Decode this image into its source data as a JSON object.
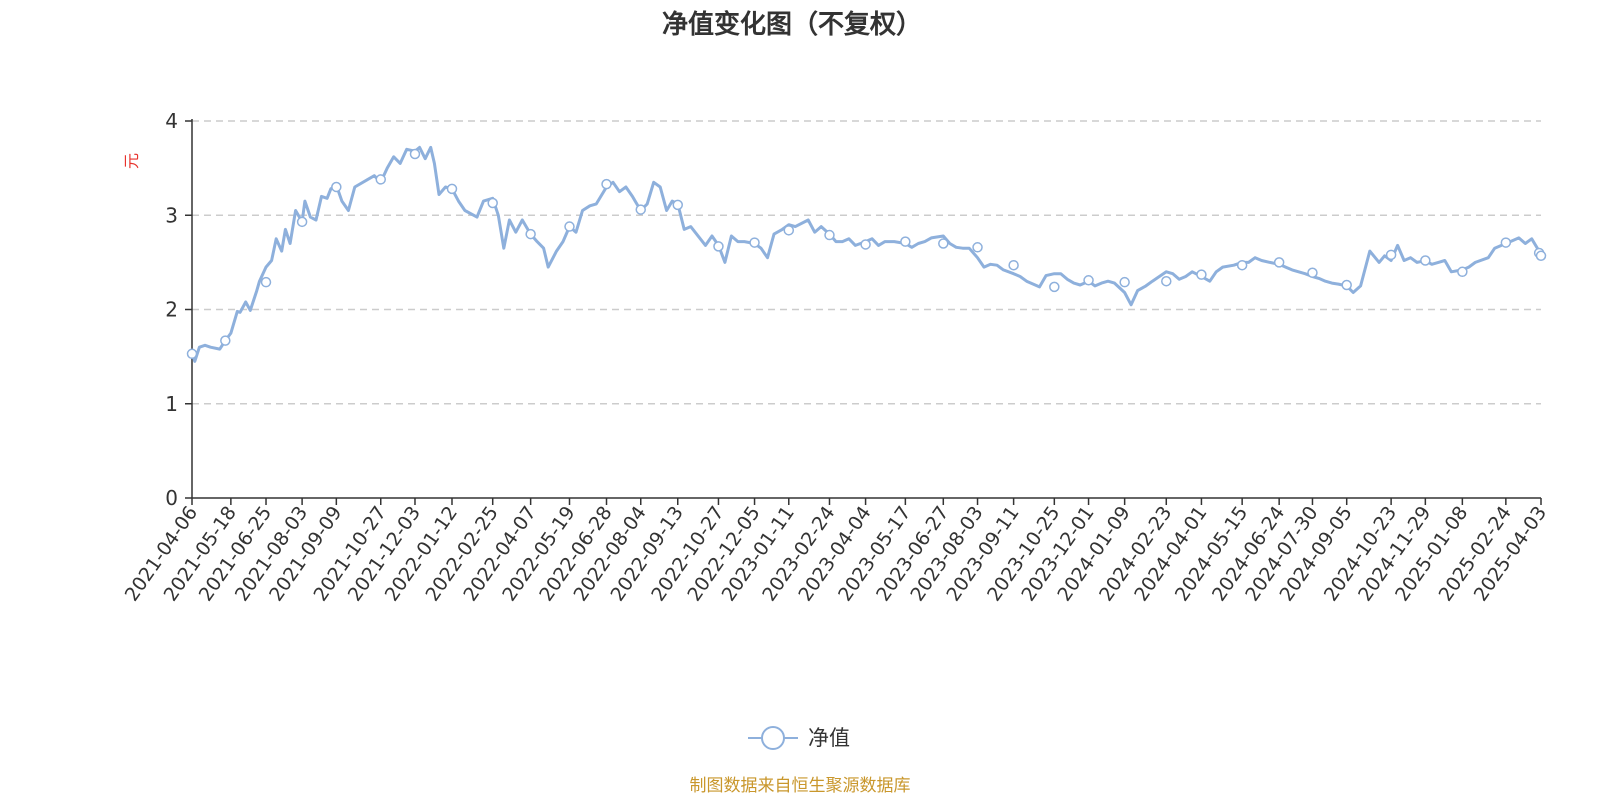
{
  "chart_data": {
    "type": "line",
    "title": "净值变化图（不复权）",
    "ylabel": "元",
    "ylim": [
      0,
      4
    ],
    "yticks": [
      "0",
      "1",
      "2",
      "3",
      "4"
    ],
    "grid": "horizontal dashed",
    "x_tick_labels": [
      "2021-04-06",
      "2021-05-18",
      "2021-06-25",
      "2021-08-03",
      "2021-09-09",
      "2021-10-27",
      "2021-12-03",
      "2022-01-12",
      "2022-02-25",
      "2022-04-07",
      "2022-05-19",
      "2022-06-28",
      "2022-08-04",
      "2022-09-13",
      "2022-10-27",
      "2022-12-05",
      "2023-01-11",
      "2023-02-24",
      "2023-04-04",
      "2023-05-17",
      "2023-06-27",
      "2023-08-03",
      "2023-09-11",
      "2023-10-25",
      "2023-12-01",
      "2024-01-09",
      "2024-02-23",
      "2024-04-01",
      "2024-05-15",
      "2024-06-24",
      "2024-07-30",
      "2024-09-05",
      "2024-10-23",
      "2024-11-29",
      "2025-01-08",
      "2025-02-24",
      "2025-04-03"
    ],
    "series": [
      {
        "name": "净值",
        "color": "#8eb0dc",
        "x": [
          "2021-04-06",
          "2021-04-09",
          "2021-04-14",
          "2021-04-20",
          "2021-04-26",
          "2021-05-06",
          "2021-05-12",
          "2021-05-18",
          "2021-05-25",
          "2021-05-28",
          "2021-06-03",
          "2021-06-08",
          "2021-06-15",
          "2021-06-18",
          "2021-06-25",
          "2021-07-01",
          "2021-07-06",
          "2021-07-12",
          "2021-07-16",
          "2021-07-21",
          "2021-07-27",
          "2021-08-03",
          "2021-08-06",
          "2021-08-12",
          "2021-08-18",
          "2021-08-24",
          "2021-08-30",
          "2021-09-03",
          "2021-09-09",
          "2021-09-15",
          "2021-09-22",
          "2021-09-29",
          "2021-10-13",
          "2021-10-20",
          "2021-10-27",
          "2021-11-03",
          "2021-11-10",
          "2021-11-17",
          "2021-11-24",
          "2021-12-03",
          "2021-12-08",
          "2021-12-14",
          "2021-12-20",
          "2021-12-24",
          "2021-12-29",
          "2022-01-05",
          "2022-01-12",
          "2022-01-19",
          "2022-01-26",
          "2022-02-08",
          "2022-02-15",
          "2022-02-25",
          "2022-03-03",
          "2022-03-09",
          "2022-03-15",
          "2022-03-22",
          "2022-03-29",
          "2022-04-07",
          "2022-04-14",
          "2022-04-21",
          "2022-04-26",
          "2022-05-05",
          "2022-05-12",
          "2022-05-19",
          "2022-05-26",
          "2022-06-02",
          "2022-06-10",
          "2022-06-17",
          "2022-06-28",
          "2022-07-05",
          "2022-07-12",
          "2022-07-19",
          "2022-07-26",
          "2022-08-04",
          "2022-08-11",
          "2022-08-18",
          "2022-08-25",
          "2022-09-01",
          "2022-09-07",
          "2022-09-13",
          "2022-09-20",
          "2022-09-27",
          "2022-10-13",
          "2022-10-20",
          "2022-10-27",
          "2022-11-03",
          "2022-11-10",
          "2022-11-17",
          "2022-11-24",
          "2022-12-05",
          "2022-12-12",
          "2022-12-19",
          "2022-12-26",
          "2023-01-04",
          "2023-01-11",
          "2023-01-18",
          "2023-02-01",
          "2023-02-08",
          "2023-02-15",
          "2023-02-24",
          "2023-03-03",
          "2023-03-10",
          "2023-03-17",
          "2023-03-24",
          "2023-04-04",
          "2023-04-11",
          "2023-04-18",
          "2023-04-25",
          "2023-05-05",
          "2023-05-17",
          "2023-05-24",
          "2023-05-31",
          "2023-06-07",
          "2023-06-14",
          "2023-06-27",
          "2023-07-04",
          "2023-07-11",
          "2023-07-18",
          "2023-07-25",
          "2023-08-03",
          "2023-08-10",
          "2023-08-17",
          "2023-08-24",
          "2023-08-31",
          "2023-09-11",
          "2023-09-18",
          "2023-09-25",
          "2023-10-09",
          "2023-10-16",
          "2023-10-25",
          "2023-11-01",
          "2023-11-08",
          "2023-11-15",
          "2023-11-22",
          "2023-12-01",
          "2023-12-08",
          "2023-12-15",
          "2023-12-22",
          "2023-12-29",
          "2024-01-09",
          "2024-01-16",
          "2024-01-23",
          "2024-02-01",
          "2024-02-08",
          "2024-02-23",
          "2024-03-01",
          "2024-03-08",
          "2024-03-15",
          "2024-03-22",
          "2024-04-01",
          "2024-04-10",
          "2024-04-17",
          "2024-04-24",
          "2024-05-06",
          "2024-05-15",
          "2024-05-22",
          "2024-05-29",
          "2024-06-05",
          "2024-06-14",
          "2024-06-24",
          "2024-07-01",
          "2024-07-08",
          "2024-07-15",
          "2024-07-22",
          "2024-07-30",
          "2024-08-06",
          "2024-08-13",
          "2024-08-20",
          "2024-08-27",
          "2024-09-05",
          "2024-09-12",
          "2024-09-20",
          "2024-09-30",
          "2024-10-10",
          "2024-10-16",
          "2024-10-23",
          "2024-10-30",
          "2024-11-06",
          "2024-11-13",
          "2024-11-20",
          "2024-11-29",
          "2024-12-06",
          "2024-12-13",
          "2024-12-20",
          "2024-12-27",
          "2025-01-08",
          "2025-01-15",
          "2025-01-22",
          "2025-02-05",
          "2025-02-12",
          "2025-02-24",
          "2025-03-03",
          "2025-03-10",
          "2025-03-17",
          "2025-03-24",
          "2025-04-01",
          "2025-04-03"
        ],
        "values": [
          1.53,
          1.45,
          1.6,
          1.62,
          1.6,
          1.58,
          1.67,
          1.75,
          1.98,
          1.97,
          2.08,
          1.99,
          2.2,
          2.3,
          2.45,
          2.52,
          2.75,
          2.62,
          2.85,
          2.7,
          3.05,
          2.93,
          3.15,
          2.98,
          2.95,
          3.2,
          3.18,
          3.28,
          3.32,
          3.15,
          3.05,
          3.3,
          3.38,
          3.42,
          3.35,
          3.5,
          3.62,
          3.55,
          3.7,
          3.68,
          3.72,
          3.6,
          3.72,
          3.55,
          3.22,
          3.3,
          3.28,
          3.15,
          3.05,
          2.98,
          3.15,
          3.18,
          3.0,
          2.65,
          2.95,
          2.82,
          2.95,
          2.8,
          2.72,
          2.65,
          2.45,
          2.62,
          2.72,
          2.88,
          2.82,
          3.05,
          3.1,
          3.12,
          3.3,
          3.35,
          3.25,
          3.3,
          3.2,
          3.05,
          3.12,
          3.35,
          3.3,
          3.05,
          3.15,
          3.12,
          2.85,
          2.88,
          2.68,
          2.78,
          2.68,
          2.5,
          2.78,
          2.72,
          2.72,
          2.7,
          2.65,
          2.55,
          2.8,
          2.85,
          2.9,
          2.88,
          2.95,
          2.82,
          2.88,
          2.8,
          2.72,
          2.72,
          2.75,
          2.68,
          2.72,
          2.75,
          2.68,
          2.72,
          2.72,
          2.7,
          2.66,
          2.7,
          2.72,
          2.76,
          2.78,
          2.7,
          2.66,
          2.65,
          2.65,
          2.55,
          2.45,
          2.48,
          2.47,
          2.42,
          2.38,
          2.35,
          2.3,
          2.24,
          2.36,
          2.38,
          2.38,
          2.32,
          2.28,
          2.26,
          2.3,
          2.25,
          2.28,
          2.3,
          2.28,
          2.18,
          2.05,
          2.2,
          2.25,
          2.3,
          2.4,
          2.38,
          2.32,
          2.35,
          2.4,
          2.35,
          2.3,
          2.4,
          2.45,
          2.47,
          2.5,
          2.5,
          2.55,
          2.52,
          2.5,
          2.48,
          2.45,
          2.42,
          2.4,
          2.38,
          2.35,
          2.33,
          2.3,
          2.28,
          2.27,
          2.25,
          2.18,
          2.25,
          2.62,
          2.5,
          2.57,
          2.52,
          2.68,
          2.52,
          2.55,
          2.5,
          2.52,
          2.48,
          2.5,
          2.52,
          2.4,
          2.42,
          2.45,
          2.5,
          2.55,
          2.65,
          2.7,
          2.73,
          2.76,
          2.7,
          2.75,
          2.62,
          2.58
        ],
        "marker_points": [
          {
            "x": "2021-04-06",
            "y": 1.53
          },
          {
            "x": "2021-05-12",
            "y": 1.67
          },
          {
            "x": "2021-06-25",
            "y": 2.29
          },
          {
            "x": "2021-08-03",
            "y": 2.93
          },
          {
            "x": "2021-09-09",
            "y": 3.3
          },
          {
            "x": "2021-10-27",
            "y": 3.38
          },
          {
            "x": "2021-12-03",
            "y": 3.65
          },
          {
            "x": "2022-01-12",
            "y": 3.28
          },
          {
            "x": "2022-02-25",
            "y": 3.13
          },
          {
            "x": "2022-04-07",
            "y": 2.8
          },
          {
            "x": "2022-05-19",
            "y": 2.88
          },
          {
            "x": "2022-06-28",
            "y": 3.33
          },
          {
            "x": "2022-08-04",
            "y": 3.06
          },
          {
            "x": "2022-09-13",
            "y": 3.11
          },
          {
            "x": "2022-10-27",
            "y": 2.67
          },
          {
            "x": "2022-12-05",
            "y": 2.71
          },
          {
            "x": "2023-01-11",
            "y": 2.84
          },
          {
            "x": "2023-02-24",
            "y": 2.79
          },
          {
            "x": "2023-04-04",
            "y": 2.69
          },
          {
            "x": "2023-05-17",
            "y": 2.72
          },
          {
            "x": "2023-06-27",
            "y": 2.7
          },
          {
            "x": "2023-08-03",
            "y": 2.66
          },
          {
            "x": "2023-09-11",
            "y": 2.47
          },
          {
            "x": "2023-10-25",
            "y": 2.24
          },
          {
            "x": "2023-12-01",
            "y": 2.31
          },
          {
            "x": "2024-01-09",
            "y": 2.29
          },
          {
            "x": "2024-02-23",
            "y": 2.3
          },
          {
            "x": "2024-04-01",
            "y": 2.37
          },
          {
            "x": "2024-05-15",
            "y": 2.47
          },
          {
            "x": "2024-06-24",
            "y": 2.5
          },
          {
            "x": "2024-07-30",
            "y": 2.39
          },
          {
            "x": "2024-09-05",
            "y": 2.26
          },
          {
            "x": "2024-10-23",
            "y": 2.58
          },
          {
            "x": "2024-11-29",
            "y": 2.52
          },
          {
            "x": "2025-01-08",
            "y": 2.4
          },
          {
            "x": "2025-02-24",
            "y": 2.71
          },
          {
            "x": "2025-04-01",
            "y": 2.6
          },
          {
            "x": "2025-04-03",
            "y": 2.57
          }
        ]
      }
    ],
    "legend_position": "bottom-center"
  },
  "legend": {
    "label": "净值"
  },
  "source_note": "制图数据来自恒生聚源数据库",
  "colors": {
    "line": "#8eb0dc",
    "axis": "#333333",
    "grid": "#cccccc",
    "ylabel": "#e8322c",
    "source": "#c9972c"
  }
}
